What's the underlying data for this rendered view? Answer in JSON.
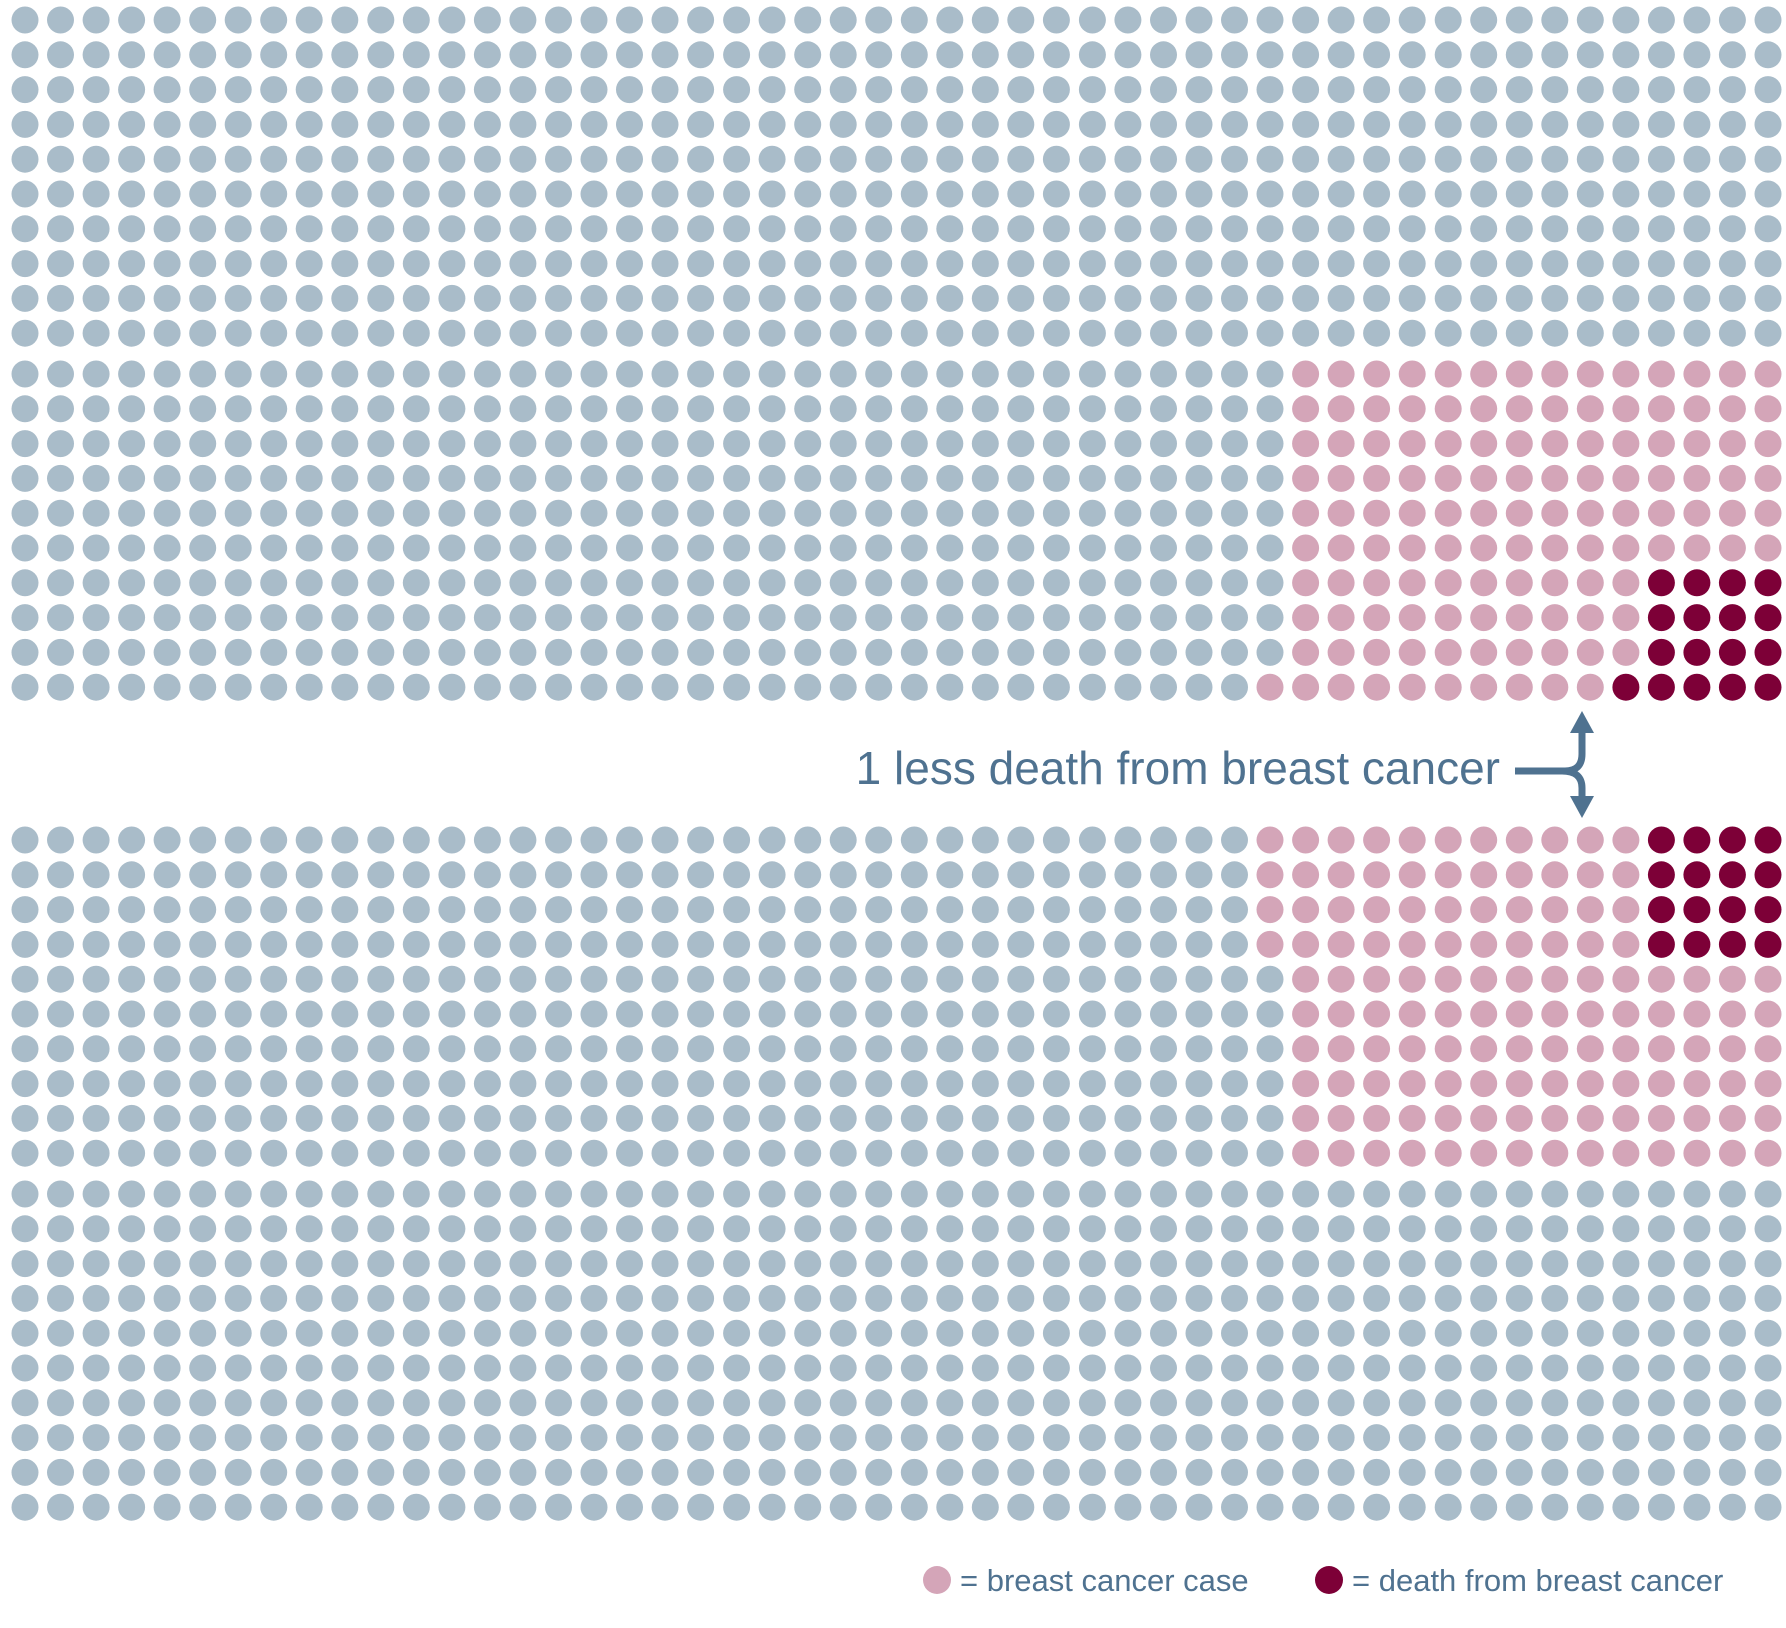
{
  "chart_data": {
    "type": "waffle",
    "panels": [
      {
        "name": "",
        "rows": 20,
        "cols": 50,
        "total": 1000,
        "breast_cancer_cases": 110,
        "deaths": 21,
        "row_fill": [
          [],
          [],
          [],
          [],
          [],
          [],
          [],
          [],
          [],
          [],
          [
            {
              "from": 36,
              "to": 50,
              "kind": "case"
            }
          ],
          [
            {
              "from": 36,
              "to": 50,
              "kind": "case"
            }
          ],
          [
            {
              "from": 36,
              "to": 50,
              "kind": "case"
            }
          ],
          [
            {
              "from": 36,
              "to": 50,
              "kind": "case"
            }
          ],
          [
            {
              "from": 36,
              "to": 50,
              "kind": "case"
            }
          ],
          [
            {
              "from": 36,
              "to": 50,
              "kind": "case"
            }
          ],
          [
            {
              "from": 36,
              "to": 46,
              "kind": "case"
            },
            {
              "from": 46,
              "to": 50,
              "kind": "death"
            }
          ],
          [
            {
              "from": 36,
              "to": 46,
              "kind": "case"
            },
            {
              "from": 46,
              "to": 50,
              "kind": "death"
            }
          ],
          [
            {
              "from": 36,
              "to": 46,
              "kind": "case"
            },
            {
              "from": 46,
              "to": 50,
              "kind": "death"
            }
          ],
          [
            {
              "from": 35,
              "to": 45,
              "kind": "case"
            },
            {
              "from": 45,
              "to": 50,
              "kind": "death"
            }
          ]
        ]
      },
      {
        "name": "",
        "rows": 20,
        "cols": 50,
        "total": 1000,
        "breast_cancer_cases": 110,
        "deaths": 20,
        "row_fill": [
          [
            {
              "from": 35,
              "to": 46,
              "kind": "case"
            },
            {
              "from": 46,
              "to": 50,
              "kind": "death"
            }
          ],
          [
            {
              "from": 35,
              "to": 46,
              "kind": "case"
            },
            {
              "from": 46,
              "to": 50,
              "kind": "death"
            }
          ],
          [
            {
              "from": 35,
              "to": 46,
              "kind": "case"
            },
            {
              "from": 46,
              "to": 50,
              "kind": "death"
            }
          ],
          [
            {
              "from": 35,
              "to": 46,
              "kind": "case"
            },
            {
              "from": 46,
              "to": 50,
              "kind": "death"
            }
          ],
          [
            {
              "from": 36,
              "to": 50,
              "kind": "case"
            }
          ],
          [
            {
              "from": 36,
              "to": 50,
              "kind": "case"
            }
          ],
          [
            {
              "from": 36,
              "to": 50,
              "kind": "case"
            }
          ],
          [
            {
              "from": 36,
              "to": 50,
              "kind": "case"
            }
          ],
          [
            {
              "from": 36,
              "to": 50,
              "kind": "case"
            }
          ],
          [
            {
              "from": 36,
              "to": 50,
              "kind": "case"
            }
          ],
          [],
          [],
          [],
          [],
          [],
          [],
          [],
          [],
          [],
          []
        ]
      }
    ],
    "annotation": "1 less death from breast cancer",
    "legend": [
      {
        "label": "= breast cancer case",
        "color": "#d4a5b8"
      },
      {
        "label": "= death from breast cancer",
        "color": "#7d0037"
      }
    ],
    "colors": {
      "base": "#a9bcc9",
      "case": "#d4a5b8",
      "death": "#7d0037",
      "text": "#4f7290",
      "arrow": "#4f7290"
    }
  }
}
